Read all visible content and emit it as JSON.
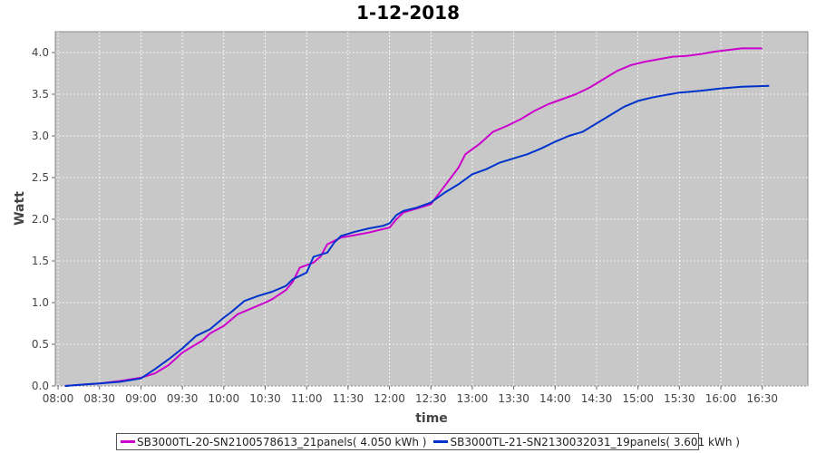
{
  "chart_data": {
    "type": "line",
    "title": "1-12-2018",
    "xlabel": "time",
    "ylabel": "Watt",
    "ylim": [
      0,
      4.25
    ],
    "xlim": [
      "07:58",
      "17:03"
    ],
    "grid": true,
    "legend_placement": "bottom",
    "plot_background": "#c8c8c8",
    "x_ticks": [
      "08:00",
      "08:30",
      "09:00",
      "09:30",
      "10:00",
      "10:30",
      "11:00",
      "11:30",
      "12:00",
      "12:30",
      "13:00",
      "13:30",
      "14:00",
      "14:30",
      "15:00",
      "15:30",
      "16:00",
      "16:30"
    ],
    "y_ticks": [
      "0.0",
      "0.5",
      "1.0",
      "1.5",
      "2.0",
      "2.5",
      "3.0",
      "3.5",
      "4.0"
    ],
    "series": [
      {
        "name": "SB3000TL-20-SN2100578613_21panels( 4.050 kWh )",
        "color": "#cc00cc",
        "points": [
          [
            "08:05",
            0.0
          ],
          [
            "08:20",
            0.02
          ],
          [
            "08:30",
            0.03
          ],
          [
            "08:45",
            0.06
          ],
          [
            "09:00",
            0.1
          ],
          [
            "09:10",
            0.15
          ],
          [
            "09:20",
            0.25
          ],
          [
            "09:30",
            0.4
          ],
          [
            "09:40",
            0.5
          ],
          [
            "09:45",
            0.55
          ],
          [
            "09:50",
            0.63
          ],
          [
            "10:00",
            0.72
          ],
          [
            "10:10",
            0.86
          ],
          [
            "10:20",
            0.93
          ],
          [
            "10:30",
            1.0
          ],
          [
            "10:35",
            1.04
          ],
          [
            "10:45",
            1.15
          ],
          [
            "10:50",
            1.25
          ],
          [
            "10:55",
            1.42
          ],
          [
            "11:05",
            1.48
          ],
          [
            "11:10",
            1.55
          ],
          [
            "11:15",
            1.7
          ],
          [
            "11:25",
            1.78
          ],
          [
            "11:35",
            1.81
          ],
          [
            "11:45",
            1.84
          ],
          [
            "11:55",
            1.88
          ],
          [
            "12:00",
            1.9
          ],
          [
            "12:05",
            2.0
          ],
          [
            "12:10",
            2.08
          ],
          [
            "12:20",
            2.13
          ],
          [
            "12:30",
            2.18
          ],
          [
            "12:40",
            2.4
          ],
          [
            "12:50",
            2.62
          ],
          [
            "12:55",
            2.78
          ],
          [
            "13:05",
            2.9
          ],
          [
            "13:15",
            3.05
          ],
          [
            "13:25",
            3.12
          ],
          [
            "13:35",
            3.2
          ],
          [
            "13:45",
            3.3
          ],
          [
            "13:55",
            3.38
          ],
          [
            "14:05",
            3.44
          ],
          [
            "14:15",
            3.5
          ],
          [
            "14:25",
            3.58
          ],
          [
            "14:35",
            3.68
          ],
          [
            "14:45",
            3.78
          ],
          [
            "14:55",
            3.85
          ],
          [
            "15:05",
            3.89
          ],
          [
            "15:15",
            3.92
          ],
          [
            "15:25",
            3.95
          ],
          [
            "15:35",
            3.96
          ],
          [
            "15:45",
            3.98
          ],
          [
            "15:55",
            4.01
          ],
          [
            "16:05",
            4.03
          ],
          [
            "16:15",
            4.05
          ],
          [
            "16:30",
            4.05
          ]
        ]
      },
      {
        "name": "SB3000TL-21-SN2130032031_19panels( 3.601 kWh )",
        "color": "#0033cc",
        "points": [
          [
            "08:05",
            0.0
          ],
          [
            "08:20",
            0.02
          ],
          [
            "08:30",
            0.03
          ],
          [
            "08:45",
            0.05
          ],
          [
            "09:00",
            0.09
          ],
          [
            "09:10",
            0.2
          ],
          [
            "09:20",
            0.32
          ],
          [
            "09:30",
            0.45
          ],
          [
            "09:40",
            0.6
          ],
          [
            "09:50",
            0.68
          ],
          [
            "10:00",
            0.82
          ],
          [
            "10:05",
            0.88
          ],
          [
            "10:15",
            1.02
          ],
          [
            "10:25",
            1.08
          ],
          [
            "10:35",
            1.13
          ],
          [
            "10:45",
            1.2
          ],
          [
            "10:50",
            1.28
          ],
          [
            "11:00",
            1.36
          ],
          [
            "11:05",
            1.55
          ],
          [
            "11:15",
            1.6
          ],
          [
            "11:20",
            1.72
          ],
          [
            "11:25",
            1.8
          ],
          [
            "11:35",
            1.85
          ],
          [
            "11:45",
            1.89
          ],
          [
            "11:55",
            1.92
          ],
          [
            "12:00",
            1.95
          ],
          [
            "12:05",
            2.05
          ],
          [
            "12:10",
            2.1
          ],
          [
            "12:20",
            2.14
          ],
          [
            "12:30",
            2.2
          ],
          [
            "12:40",
            2.32
          ],
          [
            "12:50",
            2.42
          ],
          [
            "13:00",
            2.54
          ],
          [
            "13:10",
            2.6
          ],
          [
            "13:20",
            2.68
          ],
          [
            "13:30",
            2.73
          ],
          [
            "13:40",
            2.78
          ],
          [
            "13:50",
            2.85
          ],
          [
            "14:00",
            2.93
          ],
          [
            "14:10",
            3.0
          ],
          [
            "14:20",
            3.05
          ],
          [
            "14:30",
            3.15
          ],
          [
            "14:40",
            3.25
          ],
          [
            "14:50",
            3.35
          ],
          [
            "15:00",
            3.42
          ],
          [
            "15:10",
            3.46
          ],
          [
            "15:20",
            3.49
          ],
          [
            "15:30",
            3.52
          ],
          [
            "15:45",
            3.54
          ],
          [
            "16:00",
            3.57
          ],
          [
            "16:15",
            3.59
          ],
          [
            "16:35",
            3.6
          ]
        ]
      }
    ]
  }
}
